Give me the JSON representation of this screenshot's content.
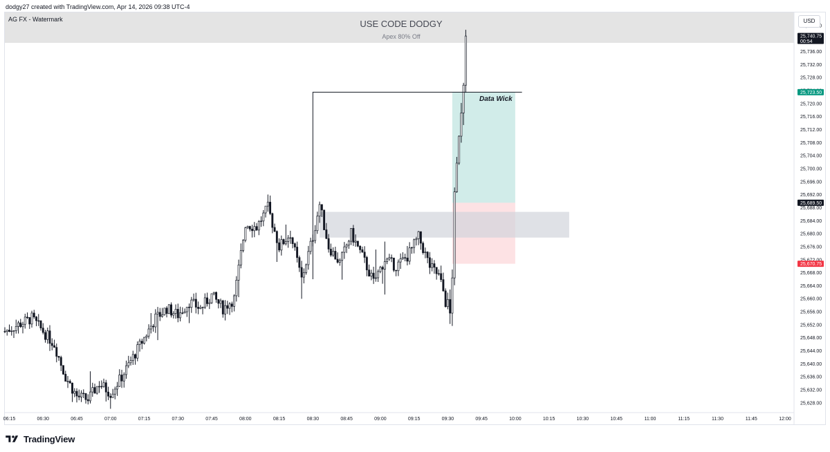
{
  "header": {
    "attribution": "dodgy27 created with TradingView.com, Apr 14, 2026 09:38 UTC-4",
    "symbol": "AG FX - Watermark",
    "currency": "USD"
  },
  "banner": {
    "title": "USE CODE DODGY",
    "subtitle": "Apex 80% Off"
  },
  "annotation": {
    "label": "Data Wick",
    "level": 25723.5
  },
  "price_tags": [
    {
      "price": "25,740.75",
      "sub": "00:54",
      "value": 25740.75,
      "color": "#131722"
    },
    {
      "price": "25,723.50",
      "sub": "",
      "value": 25723.5,
      "color": "#089981"
    },
    {
      "price": "25,689.50",
      "sub": "",
      "value": 25689.5,
      "color": "#131722"
    },
    {
      "price": "25,670.75",
      "sub": "",
      "value": 25670.75,
      "color": "#f23645"
    }
  ],
  "colors": {
    "profit_zone": "#b2dfdb",
    "loss_zone": "#fccbcd",
    "gray_zone": "#d1d4dc",
    "candle": "#131722"
  },
  "chart_data": {
    "type": "candlestick",
    "interval_minutes": 1,
    "y_axis": {
      "ticks": [
        "25,744.00",
        "25,740.00",
        "25,736.00",
        "25,732.00",
        "25,728.00",
        "25,724.00",
        "25,720.00",
        "25,716.00",
        "25,712.00",
        "25,708.00",
        "25,704.00",
        "25,700.00",
        "25,696.00",
        "25,692.00",
        "25,688.00",
        "25,684.00",
        "25,680.00",
        "25,676.00",
        "25,672.00",
        "25,668.00",
        "25,664.00",
        "25,660.00",
        "25,656.00",
        "25,652.00",
        "25,648.00",
        "25,644.00",
        "25,640.00",
        "25,636.00",
        "25,632.00",
        "25,628.00"
      ],
      "range": [
        25625,
        25748
      ],
      "position": "right"
    },
    "x_axis": {
      "ticks": [
        "06:15",
        "06:30",
        "06:45",
        "07:00",
        "07:15",
        "07:30",
        "07:45",
        "08:00",
        "08:15",
        "08:30",
        "08:45",
        "09:00",
        "09:15",
        "09:30",
        "09:45",
        "10:00",
        "10:15",
        "10:30",
        "10:45",
        "11:00",
        "11:15",
        "11:30",
        "11:45",
        "12:00"
      ],
      "range": [
        "06:13",
        "12:04"
      ]
    },
    "close_path": [
      [
        "06:13",
        25650
      ],
      [
        "06:25",
        25654
      ],
      [
        "06:30",
        25650
      ],
      [
        "06:35",
        25646
      ],
      [
        "06:40",
        25636
      ],
      [
        "06:45",
        25630
      ],
      [
        "06:50",
        25629
      ],
      [
        "06:55",
        25634
      ],
      [
        "07:00",
        25631
      ],
      [
        "07:05",
        25636
      ],
      [
        "07:10",
        25642
      ],
      [
        "07:15",
        25648
      ],
      [
        "07:20",
        25654
      ],
      [
        "07:25",
        25657
      ],
      [
        "07:30",
        25655
      ],
      [
        "07:35",
        25659
      ],
      [
        "07:40",
        25657
      ],
      [
        "07:45",
        25661
      ],
      [
        "07:50",
        25657
      ],
      [
        "07:55",
        25660
      ],
      [
        "08:00",
        25683
      ],
      [
        "08:05",
        25682
      ],
      [
        "08:10",
        25688
      ],
      [
        "08:15",
        25676
      ],
      [
        "08:20",
        25680
      ],
      [
        "08:25",
        25666
      ],
      [
        "08:30",
        25679
      ],
      [
        "08:33",
        25689
      ],
      [
        "08:37",
        25676
      ],
      [
        "08:42",
        25671
      ],
      [
        "08:47",
        25680
      ],
      [
        "08:52",
        25673
      ],
      [
        "08:57",
        25665
      ],
      [
        "09:02",
        25672
      ],
      [
        "09:07",
        25670
      ],
      [
        "09:12",
        25673
      ],
      [
        "09:17",
        25679
      ],
      [
        "09:22",
        25670
      ],
      [
        "09:26",
        25667
      ],
      [
        "09:29",
        25660
      ],
      [
        "09:31",
        25655
      ],
      [
        "09:32",
        25668
      ],
      [
        "09:33",
        25690
      ],
      [
        "09:34",
        25700
      ],
      [
        "09:35",
        25712
      ],
      [
        "09:36",
        25719
      ],
      [
        "09:37",
        25728
      ],
      [
        "09:38",
        25740.75
      ]
    ],
    "zones": [
      {
        "name": "profit",
        "from_time": "09:32",
        "to_time": "10:00",
        "top": 25723.5,
        "bottom": 25689.5
      },
      {
        "name": "loss",
        "from_time": "09:32",
        "to_time": "10:00",
        "top": 25689.5,
        "bottom": 25670.75
      },
      {
        "name": "gray",
        "from_time": "08:33",
        "to_time": "10:24",
        "top": 25686.7,
        "bottom": 25678.8
      }
    ],
    "annotation_line": {
      "from_time": "08:30",
      "to_time": "10:03",
      "price": 25723.5,
      "low_price": 25666
    }
  }
}
